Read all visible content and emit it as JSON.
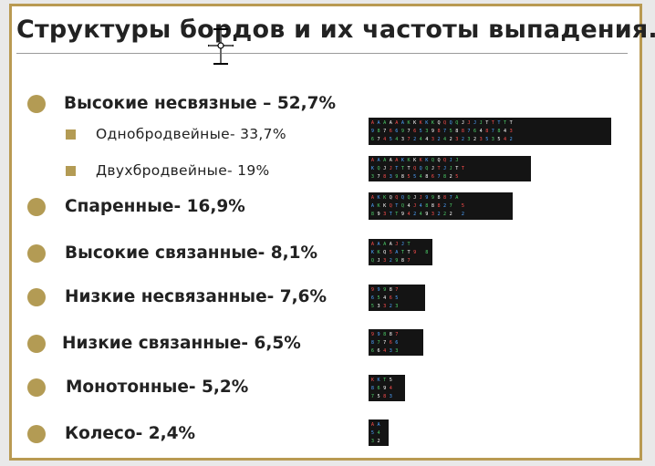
{
  "title": "Структуры бордов и их частоты выпадения.",
  "items": [
    {
      "label": "Высокие несвязные – 52,7%",
      "kind": "main"
    },
    {
      "label": "Однобродвейные- 33,7%",
      "kind": "sub"
    },
    {
      "label": "Двухбродвейные- 19%",
      "kind": "sub"
    },
    {
      "label": "Спаренные- 16,9%",
      "kind": "main"
    },
    {
      "label": "Высокие связанные- 8,1%",
      "kind": "main"
    },
    {
      "label": "Низкие несвязанные- 7,6%",
      "kind": "main"
    },
    {
      "label": "Низкие связанные- 6,5%",
      "kind": "main"
    },
    {
      "label": "Монотонные- 5,2%",
      "kind": "main"
    },
    {
      "label": "Колесо- 2,4%",
      "kind": "main"
    }
  ],
  "boards": [
    {
      "name": "oneway",
      "lines": [
        "AAAAAAKKKKKQQQQJJJJTTTTT",
        "987669765398758876487843",
        "674543724432423232353542"
      ]
    },
    {
      "name": "twoway",
      "lines": [
        "AAAAAKKKKKQQQJJ",
        "KQJJTTTQQQJTJJTT",
        "378398554867825"
      ]
    },
    {
      "name": "paired",
      "lines": [
        "AKKQQQQJJ99887A",
        "AKKQTQ4J488827 5",
        "893TT942493222 2"
      ]
    },
    {
      "name": "high-connected",
      "lines": [
        "AAAAJJT",
        "KKQ5ATT9 8",
        "QJ32987"
      ]
    },
    {
      "name": "low-disconnected",
      "lines": [
        "99987",
        "65465",
        "53323"
      ]
    },
    {
      "name": "low-connected",
      "lines": [
        "99887",
        "87766",
        "66433"
      ]
    },
    {
      "name": "monotone",
      "lines": [
        "KKT5",
        "8694",
        "7583"
      ]
    },
    {
      "name": "wheel",
      "lines": [
        "AA",
        "54",
        "32"
      ]
    }
  ]
}
